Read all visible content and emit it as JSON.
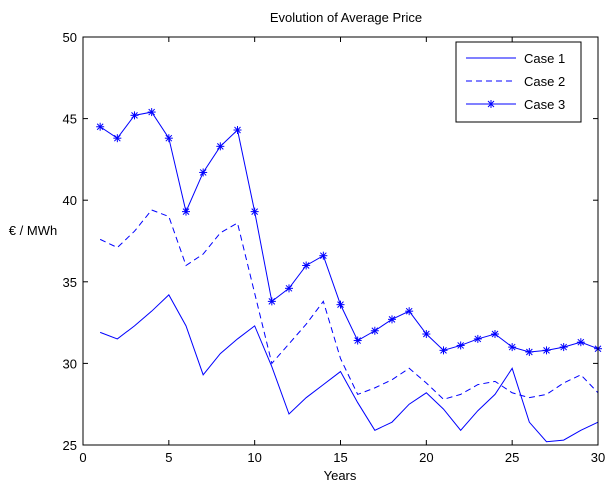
{
  "chart_data": {
    "type": "line",
    "title": "Evolution of Average Price",
    "xlabel": "Years",
    "ylabel": "€ / MWh",
    "xlim": [
      0,
      30
    ],
    "ylim": [
      25,
      50
    ],
    "xticks": [
      0,
      5,
      10,
      15,
      20,
      25,
      30
    ],
    "yticks": [
      25,
      30,
      35,
      40,
      45,
      50
    ],
    "grid": false,
    "legend_position": "top-right",
    "line_color": "#0000ff",
    "x": [
      1,
      2,
      3,
      4,
      5,
      6,
      7,
      8,
      9,
      10,
      11,
      12,
      13,
      14,
      15,
      16,
      17,
      18,
      19,
      20,
      21,
      22,
      23,
      24,
      25,
      26,
      27,
      28,
      29,
      30
    ],
    "series": [
      {
        "name": "Case 1",
        "line_style": "solid",
        "marker": "none",
        "values": [
          31.9,
          31.5,
          32.3,
          33.2,
          34.2,
          32.3,
          29.3,
          30.6,
          31.5,
          32.3,
          29.8,
          26.9,
          27.9,
          28.7,
          29.5,
          27.6,
          25.9,
          26.4,
          27.5,
          28.2,
          27.2,
          25.9,
          27.1,
          28.1,
          29.7,
          26.4,
          25.2,
          25.3,
          25.9,
          26.4
        ]
      },
      {
        "name": "Case 2",
        "line_style": "dashed",
        "marker": "none",
        "values": [
          37.6,
          37.1,
          38.1,
          39.4,
          39.0,
          36.0,
          36.7,
          38.0,
          38.6,
          34.3,
          30.0,
          31.2,
          32.4,
          33.8,
          30.3,
          28.1,
          28.5,
          29.0,
          29.7,
          28.8,
          27.8,
          28.1,
          28.7,
          28.9,
          28.2,
          27.9,
          28.1,
          28.8,
          29.3,
          28.2
        ]
      },
      {
        "name": "Case 3",
        "line_style": "solid",
        "marker": "asterisk",
        "values": [
          44.5,
          43.8,
          45.2,
          45.4,
          43.8,
          39.3,
          41.7,
          43.3,
          44.3,
          39.3,
          33.8,
          34.6,
          36.0,
          36.6,
          33.6,
          31.4,
          32.0,
          32.7,
          33.2,
          31.8,
          30.8,
          31.1,
          31.5,
          31.8,
          31.0,
          30.7,
          30.8,
          31.0,
          31.3,
          30.9
        ]
      }
    ]
  }
}
